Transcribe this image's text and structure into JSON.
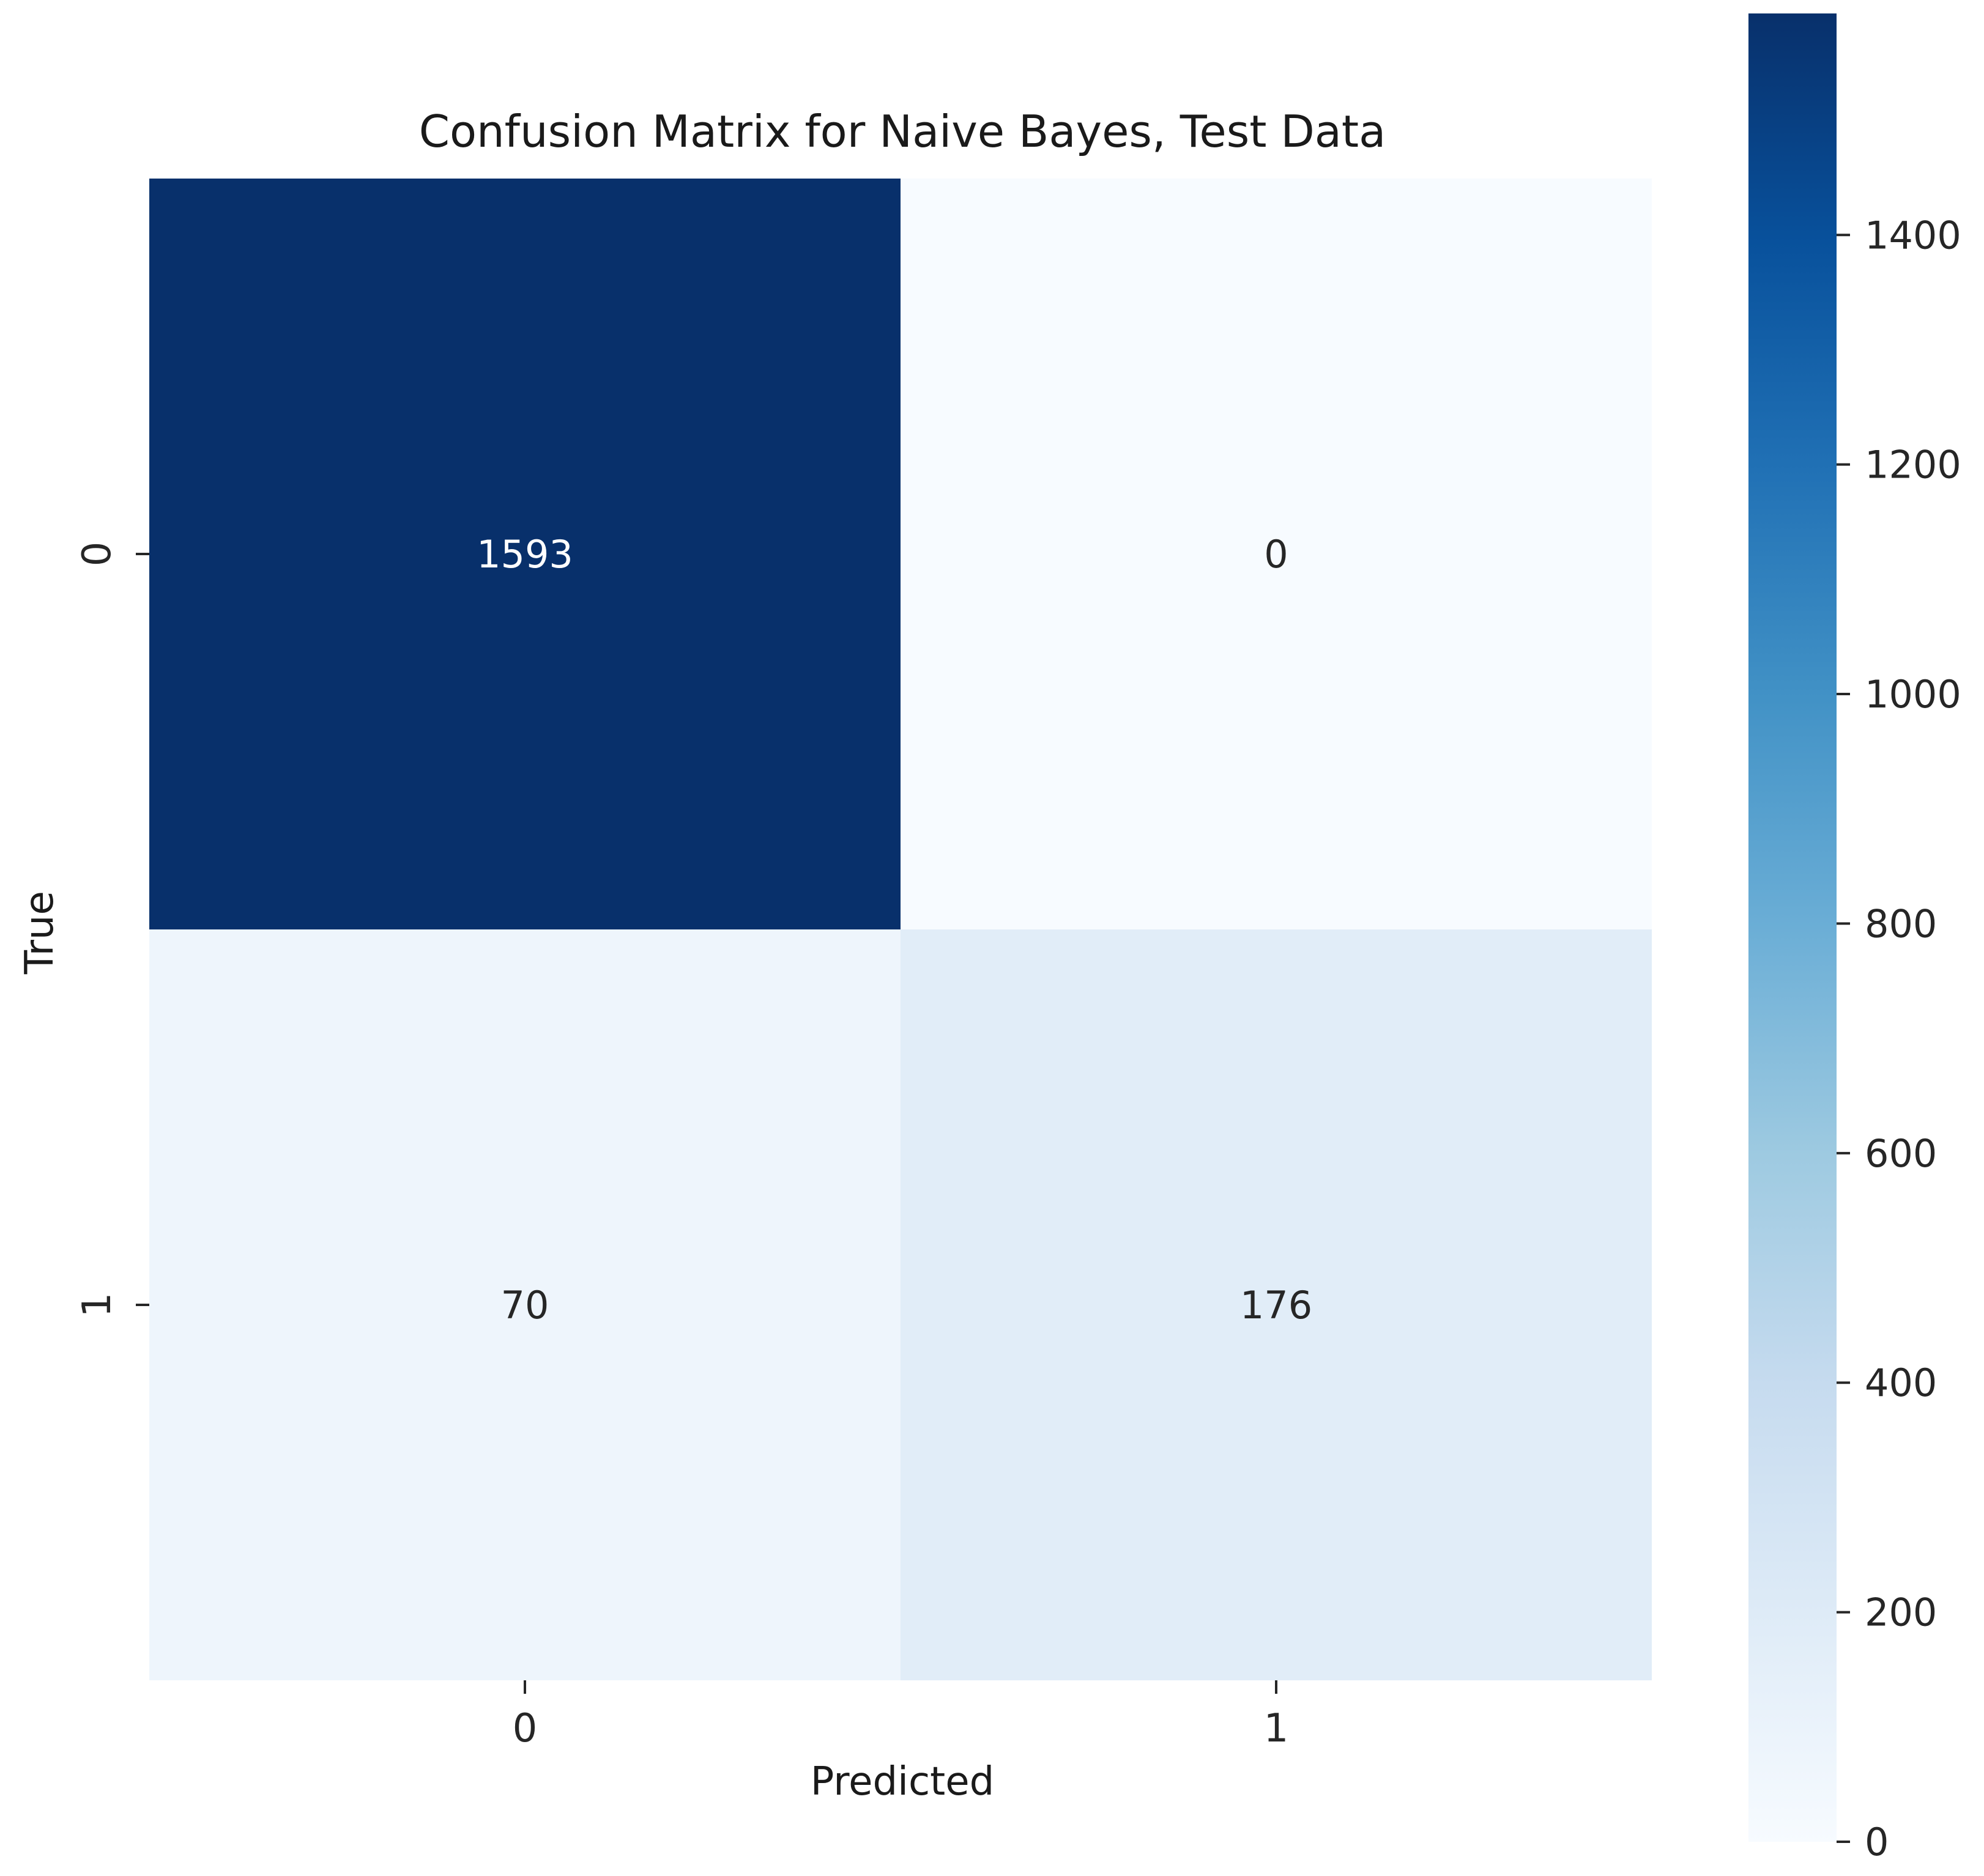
{
  "chart_data": {
    "type": "heatmap",
    "title": "Confusion Matrix for Naive Bayes, Test Data",
    "xlabel": "Predicted",
    "ylabel": "True",
    "x_categories": [
      "0",
      "1"
    ],
    "y_categories": [
      "0",
      "1"
    ],
    "values": [
      [
        1593,
        0
      ],
      [
        70,
        176
      ]
    ],
    "colormap": "Blues",
    "colorbar": {
      "range": [
        0,
        1593
      ],
      "ticks": [
        0,
        200,
        400,
        600,
        800,
        1000,
        1200,
        1400
      ],
      "tick_labels": [
        "0",
        "200",
        "400",
        "600",
        "800",
        "1000",
        "1200",
        "1400"
      ]
    },
    "annotation_colors": {
      "dark_cell_text": "#ffffff",
      "light_cell_text": "#262626"
    },
    "grid": false
  }
}
